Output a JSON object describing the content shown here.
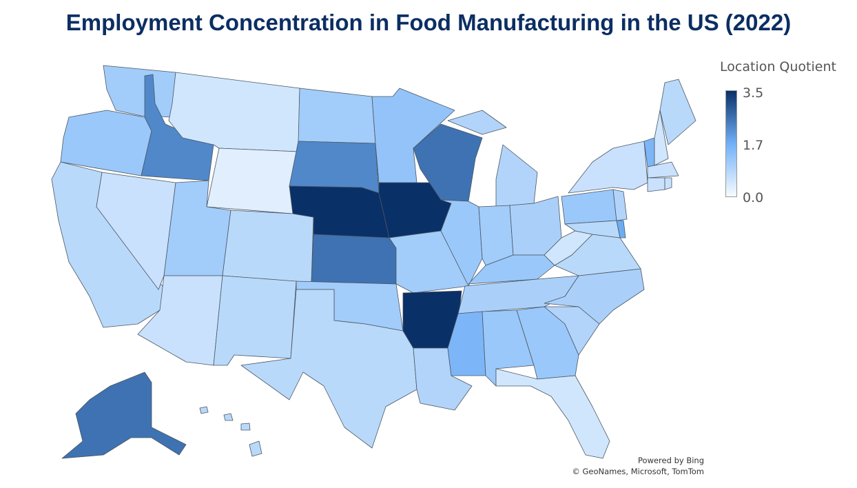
{
  "title": "Employment Concentration in Food Manufacturing in the US (2022)",
  "legend": {
    "title": "Location Quotient",
    "max_label": "3.5",
    "mid_label": "1.7",
    "min_label": "0.0",
    "colors": {
      "min": "#f7fbff",
      "mid": "#70b0f7",
      "max": "#0a3068"
    },
    "range": [
      0,
      3.5
    ]
  },
  "attribution": {
    "line1": "Powered by Bing",
    "line2": "© GeoNames, Microsoft, TomTom"
  },
  "chart_data": {
    "type": "choropleth",
    "title": "Employment Concentration in Food Manufacturing in the US (2022)",
    "value_label": "Location Quotient",
    "scale_range": [
      0,
      3.5
    ],
    "values": {
      "WA": 1.1,
      "OR": 1.2,
      "CA": 0.8,
      "NV": 0.6,
      "ID": 2.3,
      "MT": 0.5,
      "WY": 0.3,
      "UT": 1.1,
      "AZ": 0.6,
      "CO": 0.8,
      "NM": 0.8,
      "ND": 1.1,
      "SD": 2.3,
      "NE": 3.5,
      "KS": 2.6,
      "OK": 1.1,
      "TX": 0.8,
      "MN": 1.3,
      "IA": 3.5,
      "MO": 1.1,
      "AR": 3.5,
      "LA": 0.9,
      "WI": 2.6,
      "IL": 1.2,
      "MI": 0.9,
      "IN": 1.1,
      "OH": 1.0,
      "KY": 1.2,
      "TN": 1.0,
      "MS": 1.6,
      "AL": 1.2,
      "GA": 1.2,
      "FL": 0.5,
      "SC": 0.9,
      "NC": 1.0,
      "VA": 0.8,
      "WV": 0.5,
      "PA": 1.2,
      "NY": 0.6,
      "MD": 0.8,
      "DE": 1.8,
      "NJ": 0.9,
      "VT": 1.6,
      "NH": 0.5,
      "ME": 0.8,
      "MA": 0.6,
      "CT": 0.6,
      "RI": 0.6,
      "AK": 2.6,
      "HI": 0.8
    }
  }
}
